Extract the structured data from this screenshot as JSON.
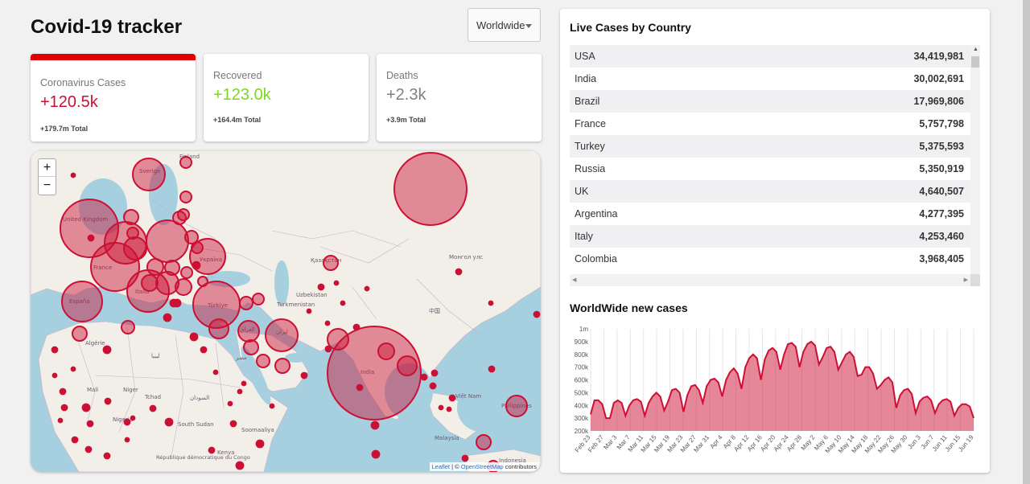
{
  "app": {
    "title": "Covid-19 tracker"
  },
  "selector": {
    "value": "Worldwide"
  },
  "infoboxes": [
    {
      "label": "Coronavirus Cases",
      "value": "+120.5k",
      "total": "+179.7m Total",
      "color": "#cc1034"
    },
    {
      "label": "Recovered",
      "value": "+123.0k",
      "total": "+164.4m Total",
      "color": "#7dd71d"
    },
    {
      "label": "Deaths",
      "value": "+2.3k",
      "total": "+3.9m Total",
      "color": "#808080"
    }
  ],
  "map": {
    "zoom_in": "+",
    "zoom_out": "−",
    "attribution_leaflet": "Leaflet",
    "attribution_sep": " | © ",
    "attribution_osm": "OpenStreetMap",
    "attribution_tail": " contributors",
    "labels": [
      "Finland",
      "Sverige",
      "United Kingdom",
      "France",
      "España",
      "Italia",
      "Україна",
      "Türkiye",
      "Қазақстан",
      "Монгол улс",
      "Uzbekistan",
      "Turkmenistan",
      "ایران",
      "العراق",
      "مصر",
      "Algérie",
      "ليبيا",
      "Mali",
      "Niger",
      "Tchad",
      "السودان",
      "South Sudan",
      "Nigeria",
      "India",
      "中国",
      "Việt Nam",
      "Philippines",
      "Malaysia",
      "Soomaaliya",
      "République démocratique du Congo",
      "Kenya",
      "Indonesia"
    ],
    "marker_color": "#cc1034"
  },
  "sidebar": {
    "table_title": "Live Cases by Country",
    "countries": [
      {
        "name": "USA",
        "cases": "34,419,981"
      },
      {
        "name": "India",
        "cases": "30,002,691"
      },
      {
        "name": "Brazil",
        "cases": "17,969,806"
      },
      {
        "name": "France",
        "cases": "5,757,798"
      },
      {
        "name": "Turkey",
        "cases": "5,375,593"
      },
      {
        "name": "Russia",
        "cases": "5,350,919"
      },
      {
        "name": "UK",
        "cases": "4,640,507"
      },
      {
        "name": "Argentina",
        "cases": "4,277,395"
      },
      {
        "name": "Italy",
        "cases": "4,253,460"
      },
      {
        "name": "Colombia",
        "cases": "3,968,405"
      }
    ],
    "chart_title": "WorldWide new cases"
  },
  "chart_data": {
    "type": "area",
    "title": "WorldWide new cases",
    "ylim": [
      200000,
      1000000
    ],
    "yticks": [
      "200k",
      "300k",
      "400k",
      "500k",
      "600k",
      "700k",
      "800k",
      "900k",
      "1m"
    ],
    "xticks": [
      "Feb 23",
      "Feb 27",
      "Mar 3",
      "Mar 7",
      "Mar 11",
      "Mar 15",
      "Mar 19",
      "Mar 23",
      "Mar 27",
      "Mar 31",
      "Apr 4",
      "Apr 8",
      "Apr 12",
      "Apr 16",
      "Apr 20",
      "Apr 24",
      "Apr 28",
      "May 2",
      "May 6",
      "May 10",
      "May 14",
      "May 18",
      "May 22",
      "May 26",
      "May 30",
      "Jun 3",
      "Jun 7",
      "Jun 11",
      "Jun 15",
      "Jun 19"
    ],
    "fill": "#cc1034",
    "values": [
      330000,
      440000,
      440000,
      410000,
      300000,
      300000,
      420000,
      440000,
      420000,
      320000,
      400000,
      440000,
      450000,
      430000,
      320000,
      420000,
      470000,
      500000,
      470000,
      360000,
      430000,
      520000,
      530000,
      500000,
      350000,
      480000,
      550000,
      560000,
      520000,
      420000,
      550000,
      600000,
      610000,
      580000,
      470000,
      600000,
      660000,
      690000,
      650000,
      530000,
      700000,
      770000,
      800000,
      770000,
      600000,
      760000,
      830000,
      850000,
      820000,
      680000,
      800000,
      880000,
      890000,
      860000,
      700000,
      820000,
      880000,
      900000,
      870000,
      720000,
      780000,
      850000,
      860000,
      820000,
      680000,
      740000,
      800000,
      820000,
      780000,
      630000,
      640000,
      700000,
      700000,
      650000,
      530000,
      560000,
      600000,
      620000,
      580000,
      380000,
      480000,
      520000,
      530000,
      490000,
      340000,
      430000,
      460000,
      470000,
      440000,
      340000,
      410000,
      440000,
      450000,
      430000,
      320000,
      380000,
      410000,
      410000,
      390000,
      300000
    ]
  }
}
